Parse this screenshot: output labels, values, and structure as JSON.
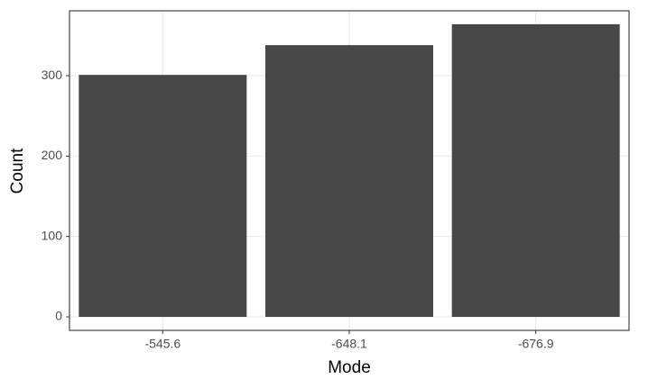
{
  "chart_data": {
    "type": "bar",
    "x_label": "Mode",
    "y_label": "Count",
    "categories": [
      "-545.6",
      "-648.1",
      "-676.9"
    ],
    "values": [
      301,
      338,
      364
    ],
    "color": "#474747",
    "ylim": [
      -16.8,
      380.7
    ],
    "yticks": [
      0,
      100,
      200,
      300
    ],
    "grid": true
  }
}
